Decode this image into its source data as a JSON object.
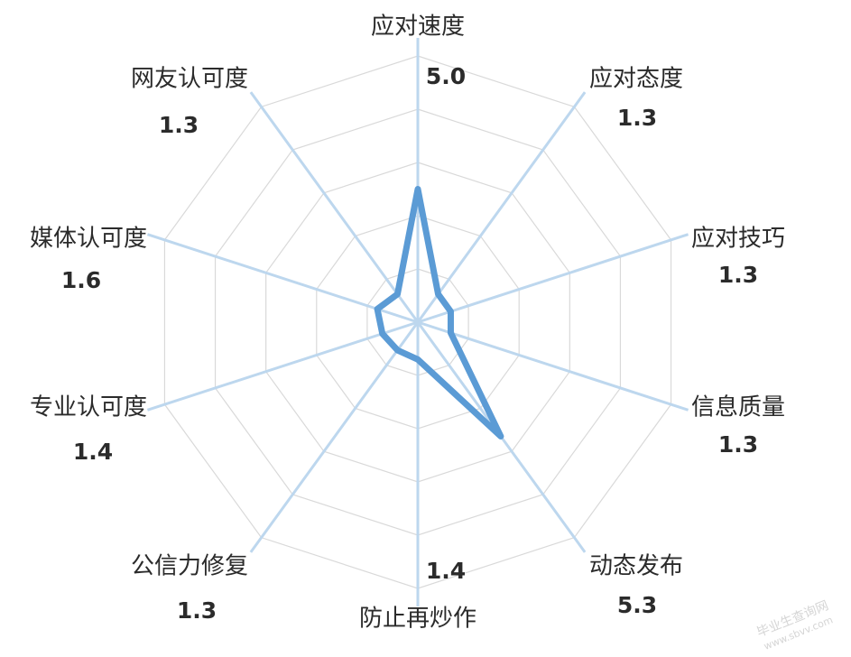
{
  "chart_data": {
    "type": "radar",
    "title": "",
    "axis_max": 10,
    "rings": 5,
    "grid": true,
    "legend": "none",
    "categories": [
      "应对速度",
      "应对态度",
      "应对技巧",
      "信息质量",
      "动态发布",
      "防止再炒作",
      "公信力修复",
      "专业认可度",
      "媒体认可度",
      "网友认可度"
    ],
    "values": [
      5.0,
      1.3,
      1.3,
      1.3,
      5.3,
      1.4,
      1.3,
      1.4,
      1.6,
      1.3
    ],
    "value_labels": [
      "5.0",
      "1.3",
      "1.3",
      "1.3",
      "5.3",
      "1.4",
      "1.3",
      "1.4",
      "1.6",
      "1.3"
    ],
    "colors": {
      "series": "#5b9bd5",
      "spokes": "#bdd7ee",
      "grid": "#d9d9d9"
    }
  },
  "watermark": {
    "line1": "毕业生查询网",
    "line2": "www.sbvv.com"
  }
}
